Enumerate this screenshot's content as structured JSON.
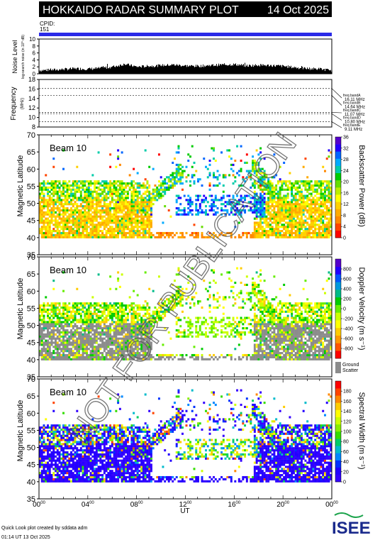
{
  "header": {
    "title": "HOKKAIDO RADAR SUMMARY PLOT",
    "date": "14 Oct 2025",
    "cpid_label": "CPID:",
    "cpid_value": "151"
  },
  "colors": {
    "cpid_bar": "#2a2ae8",
    "ground_scatter": "#8c8c8c",
    "title_bg": "#000000",
    "title_fg": "#ffffff"
  },
  "chart_data": [
    {
      "type": "bar",
      "name": "noise",
      "ylabel": "Noise Level",
      "ylabel_sub": "log-search noise (in 10^ dB)",
      "ylim": [
        0,
        10
      ],
      "yticks": [
        "0",
        "2",
        "4",
        "6",
        "8",
        "10"
      ],
      "hours": [
        0,
        1,
        2,
        3,
        4,
        5,
        6,
        7,
        8,
        9,
        10,
        11,
        12,
        13,
        14,
        15,
        16,
        17,
        18,
        19,
        20,
        21,
        22,
        23,
        24
      ],
      "values": [
        1.0,
        1.1,
        1.3,
        1.5,
        1.4,
        1.6,
        2.0,
        2.8,
        2.0,
        2.2,
        2.4,
        2.6,
        2.3,
        2.2,
        2.4,
        2.6,
        2.7,
        2.3,
        2.5,
        2.4,
        2.2,
        1.8,
        1.5,
        1.4,
        0.9
      ]
    },
    {
      "type": "line",
      "name": "frequency",
      "ylabel": "Frequency",
      "ylabel_unit": "(MHz)",
      "ylim": [
        8,
        18
      ],
      "yticks": [
        "8",
        "10",
        "12",
        "14",
        "16",
        "18"
      ],
      "bands": [
        {
          "label": "freq bandA",
          "value_text": "16.11 MHz",
          "mhz": 16.11
        },
        {
          "label": "freq bandB",
          "value_text": "14.64 MHz",
          "mhz": 14.64
        },
        {
          "label": "freq bandC",
          "value_text": "11.07 MHz",
          "mhz": 11.07
        },
        {
          "label": "freq bandD",
          "value_text": "10.80 MHz",
          "mhz": 10.8
        },
        {
          "label": "freq bandE",
          "value_text": "9.11 MHz",
          "mhz": 9.11
        }
      ]
    },
    {
      "type": "heatmap",
      "name": "power",
      "beam_label": "Beam 10",
      "ylabel": "Magnetic Latitude",
      "ylim": [
        35,
        70
      ],
      "yticks": [
        "35",
        "40",
        "45",
        "50",
        "55",
        "60",
        "65",
        "70"
      ],
      "colorbar_label": "Backscatter Power (dB)",
      "colorbar_range": [
        0,
        36
      ],
      "colorbar_ticks": [
        "0",
        "4",
        "8",
        "12",
        "16",
        "20",
        "24",
        "28",
        "32",
        "36"
      ],
      "colors": [
        "#ff0000",
        "#ff4400",
        "#ff8800",
        "#ffaa00",
        "#ffd000",
        "#ffff00",
        "#bbee00",
        "#66dd00",
        "#00cc00",
        "#00ccaa",
        "#00aaff",
        "#0066ff",
        "#2200ff",
        "#5500cc"
      ]
    },
    {
      "type": "heatmap",
      "name": "velocity",
      "beam_label": "Beam 10",
      "ylabel": "Magnetic Latitude",
      "ylim": [
        35,
        70
      ],
      "yticks": [
        "35",
        "40",
        "45",
        "50",
        "55",
        "60",
        "65",
        "70"
      ],
      "colorbar_label": "Doppler Velocity (m s⁻¹)",
      "colorbar_range": [
        -1000,
        1000
      ],
      "colorbar_ticks": [
        "-800",
        "-600",
        "-400",
        "-200",
        "0",
        "200",
        "400",
        "600",
        "800"
      ],
      "ground_scatter_label": "Ground Scatter",
      "colors": [
        "#ff0000",
        "#ff5500",
        "#ff9900",
        "#ffcc00",
        "#ffff00",
        "#ccff00",
        "#66ee00",
        "#00cc00",
        "#00bb88",
        "#0099dd",
        "#0055ff",
        "#2200ff",
        "#5500cc"
      ]
    },
    {
      "type": "heatmap",
      "name": "width",
      "beam_label": "Beam 10",
      "ylabel": "Magnetic Latitude",
      "ylim": [
        35,
        70
      ],
      "yticks": [
        "35",
        "40",
        "45",
        "50",
        "55",
        "60",
        "65",
        "70"
      ],
      "colorbar_label": "Spectral Width (m s⁻¹)",
      "colorbar_range": [
        0,
        200
      ],
      "colorbar_ticks": [
        "0",
        "20",
        "40",
        "60",
        "80",
        "100",
        "120",
        "140",
        "160",
        "180"
      ],
      "colors": [
        "#3300ff",
        "#2200ff",
        "#0033ff",
        "#0088ff",
        "#00bbcc",
        "#00cc66",
        "#33dd00",
        "#88ee00",
        "#ccff00",
        "#ffff00",
        "#ffcc00",
        "#ff8800",
        "#ff4400",
        "#ff0000"
      ]
    }
  ],
  "x_axis": {
    "label": "UT",
    "ticks": [
      {
        "hour": 0,
        "base": "00",
        "sup": "00"
      },
      {
        "hour": 4,
        "base": "04",
        "sup": "00"
      },
      {
        "hour": 8,
        "base": "08",
        "sup": "00"
      },
      {
        "hour": 12,
        "base": "12",
        "sup": "00"
      },
      {
        "hour": 16,
        "base": "16",
        "sup": "00"
      },
      {
        "hour": 20,
        "base": "20",
        "sup": "00"
      },
      {
        "hour": 24,
        "base": "00",
        "sup": "00"
      }
    ]
  },
  "footer": {
    "line1": "Quick Look plot created by sddata adm",
    "line2": "01:14 UT 13 Oct 2025",
    "logo_text": "ISEE"
  },
  "watermark": "NOT FOR PUBLICATION"
}
